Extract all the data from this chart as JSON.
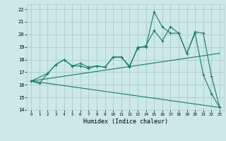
{
  "xlabel": "Humidex (Indice chaleur)",
  "bg_color": "#cce8e8",
  "grid_color": "#aacccc",
  "line_color": "#1a7a6a",
  "xlim": [
    -0.5,
    23.5
  ],
  "ylim": [
    14,
    22.4
  ],
  "xticks": [
    0,
    1,
    2,
    3,
    4,
    5,
    6,
    7,
    8,
    9,
    10,
    11,
    12,
    13,
    14,
    15,
    16,
    17,
    18,
    19,
    20,
    21,
    22,
    23
  ],
  "yticks": [
    14,
    15,
    16,
    17,
    18,
    19,
    20,
    21,
    22
  ],
  "series_with_markers": [
    {
      "x": [
        0,
        1,
        2,
        3,
        4,
        5,
        6,
        7,
        8,
        9,
        10,
        11,
        12,
        13,
        14,
        15,
        16,
        17,
        18,
        19,
        20,
        21,
        22,
        23
      ],
      "y": [
        16.3,
        16.1,
        16.9,
        17.6,
        18.0,
        17.5,
        17.7,
        17.4,
        17.5,
        17.4,
        18.2,
        18.2,
        17.5,
        18.9,
        19.1,
        20.3,
        19.5,
        20.6,
        20.1,
        18.5,
        20.1,
        16.8,
        15.3,
        14.2
      ]
    },
    {
      "x": [
        0,
        2,
        3,
        4,
        5,
        6,
        7,
        8,
        9,
        10,
        11,
        12,
        13,
        14,
        15,
        16,
        17,
        18,
        19,
        20,
        21,
        22,
        23
      ],
      "y": [
        16.3,
        16.9,
        17.6,
        18.0,
        17.5,
        17.5,
        17.3,
        17.5,
        17.4,
        18.2,
        18.2,
        17.4,
        19.0,
        19.0,
        21.8,
        20.6,
        20.1,
        20.1,
        18.5,
        20.2,
        20.1,
        16.7,
        14.2
      ]
    }
  ],
  "series_lines": [
    {
      "x": [
        0,
        23
      ],
      "y": [
        16.3,
        18.5
      ]
    },
    {
      "x": [
        0,
        23
      ],
      "y": [
        16.3,
        14.2
      ]
    }
  ]
}
